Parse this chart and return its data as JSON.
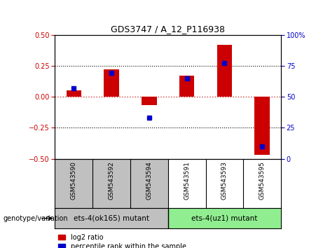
{
  "title": "GDS3747 / A_12_P116938",
  "categories": [
    "GSM543590",
    "GSM543592",
    "GSM543594",
    "GSM543591",
    "GSM543593",
    "GSM543595"
  ],
  "log2_ratio": [
    0.05,
    0.22,
    -0.07,
    0.17,
    0.42,
    -0.47
  ],
  "percentile_rank": [
    57,
    69,
    33,
    65,
    77,
    10
  ],
  "group1_label": "ets-4(ok165) mutant",
  "group2_label": "ets-4(uz1) mutant",
  "group1_indices": [
    0,
    1,
    2
  ],
  "group2_indices": [
    3,
    4,
    5
  ],
  "ylim_left": [
    -0.5,
    0.5
  ],
  "ylim_right": [
    0,
    100
  ],
  "yticks_left": [
    -0.5,
    -0.25,
    0.0,
    0.25,
    0.5
  ],
  "yticks_right": [
    0,
    25,
    50,
    75,
    100
  ],
  "hlines": [
    0.25,
    0.0,
    -0.25
  ],
  "bar_width": 0.4,
  "red_color": "#CC0000",
  "blue_color": "#0000CC",
  "group1_bg": "#C0C0C0",
  "group2_bg": "#90EE90",
  "legend_red": "log2 ratio",
  "legend_blue": "percentile rank within the sample",
  "genotype_label": "genotype/variation",
  "zero_line_color": "#CC3333"
}
